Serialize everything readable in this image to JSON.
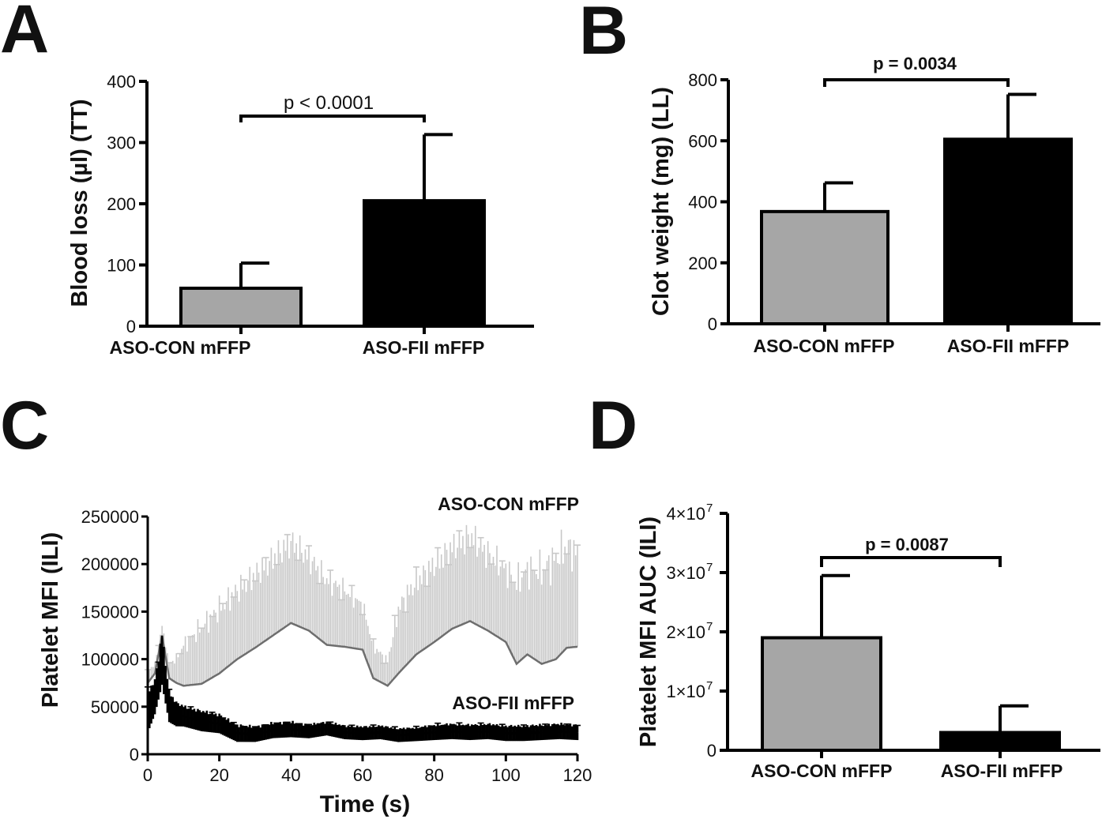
{
  "chart_data": [
    {
      "panel": "A",
      "type": "bar",
      "categories": [
        "ASO-CON mFFP",
        "ASO-FII mFFP"
      ],
      "values": [
        62,
        205
      ],
      "errors": [
        41,
        108
      ],
      "colors": [
        "#a6a6a6",
        "#000000"
      ],
      "ylabel": "Blood loss (µl) (TT)",
      "ylim": [
        0,
        400
      ],
      "yticks": [
        "0",
        "100",
        "200",
        "300",
        "400"
      ],
      "annotation": "p < 0.0001"
    },
    {
      "panel": "B",
      "type": "bar",
      "categories": [
        "ASO-CON mFFP",
        "ASO-FII mFFP"
      ],
      "values": [
        368,
        605
      ],
      "errors": [
        94,
        147
      ],
      "colors": [
        "#a6a6a6",
        "#000000"
      ],
      "ylabel": "Clot weight (mg) (LL)",
      "ylim": [
        0,
        800
      ],
      "yticks": [
        "0",
        "200",
        "400",
        "600",
        "800"
      ],
      "annotation": "p = 0.0034"
    },
    {
      "panel": "C",
      "type": "line",
      "ylabel": "Platelet MFI (ILI)",
      "xlabel": "Time (s)",
      "xlim": [
        0,
        120
      ],
      "ylim": [
        0,
        250000
      ],
      "xticks": [
        "0",
        "20",
        "40",
        "60",
        "80",
        "100",
        "120"
      ],
      "yticks": [
        "0",
        "50000",
        "100000",
        "150000",
        "200000",
        "250000"
      ],
      "series": [
        {
          "name": "ASO-CON mFFP",
          "color": "#6e6e6e",
          "error_color": "#c8c8c8",
          "x": [
            0,
            2,
            4,
            6,
            8,
            10,
            15,
            20,
            25,
            30,
            35,
            40,
            45,
            50,
            55,
            60,
            63,
            67,
            70,
            75,
            80,
            85,
            90,
            95,
            100,
            103,
            106,
            110,
            114,
            117,
            120
          ],
          "values": [
            75000,
            85000,
            125000,
            80000,
            75000,
            72000,
            74000,
            85000,
            100000,
            112000,
            125000,
            138000,
            130000,
            115000,
            113000,
            110000,
            80000,
            72000,
            85000,
            105000,
            118000,
            132000,
            140000,
            130000,
            118000,
            95000,
            105000,
            95000,
            100000,
            112000,
            113000
          ],
          "errors": [
            15000,
            12000,
            12000,
            18000,
            30000,
            50000,
            70000,
            80000,
            85000,
            90000,
            95000,
            100000,
            90000,
            80000,
            70000,
            55000,
            40000,
            30000,
            80000,
            90000,
            95000,
            100000,
            105000,
            95000,
            90000,
            100000,
            105000,
            115000,
            125000,
            125000,
            115000
          ]
        },
        {
          "name": "ASO-FII mFFP",
          "color": "#000000",
          "error_color": "#000000",
          "x": [
            0,
            2,
            4,
            6,
            8,
            10,
            15,
            20,
            25,
            30,
            35,
            40,
            45,
            50,
            55,
            60,
            65,
            70,
            75,
            80,
            85,
            90,
            95,
            100,
            105,
            110,
            115,
            120
          ],
          "values": [
            45000,
            60000,
            100000,
            50000,
            42000,
            40000,
            35000,
            32000,
            22000,
            21000,
            25000,
            26000,
            24000,
            27000,
            23000,
            22000,
            23000,
            20000,
            21000,
            23000,
            24000,
            23000,
            24000,
            22000,
            22000,
            23000,
            24000,
            23000
          ],
          "errors": [
            25000,
            20000,
            30000,
            18000,
            14000,
            12000,
            12000,
            11000,
            10000,
            9000,
            9000,
            9000,
            8000,
            8000,
            8000,
            8000,
            8000,
            8000,
            8000,
            9000,
            9000,
            9000,
            9000,
            9000,
            9000,
            9000,
            9000,
            9000
          ]
        }
      ]
    },
    {
      "panel": "D",
      "type": "bar",
      "categories": [
        "ASO-CON mFFP",
        "ASO-FII mFFP"
      ],
      "values": [
        19000000,
        3000000
      ],
      "errors": [
        10500000,
        4500000
      ],
      "colors": [
        "#a6a6a6",
        "#000000"
      ],
      "ylabel": "Platelet MFI AUC (ILI)",
      "ylim": [
        0,
        40000000
      ],
      "yticks": [
        {
          "value": 0,
          "mantissa": "0",
          "exponent": ""
        },
        {
          "value": 10000000,
          "mantissa": "1×10",
          "exponent": "7"
        },
        {
          "value": 20000000,
          "mantissa": "2×10",
          "exponent": "7"
        },
        {
          "value": 30000000,
          "mantissa": "3×10",
          "exponent": "7"
        },
        {
          "value": 40000000,
          "mantissa": "4×10",
          "exponent": "7"
        }
      ],
      "annotation": "p = 0.0087"
    }
  ]
}
